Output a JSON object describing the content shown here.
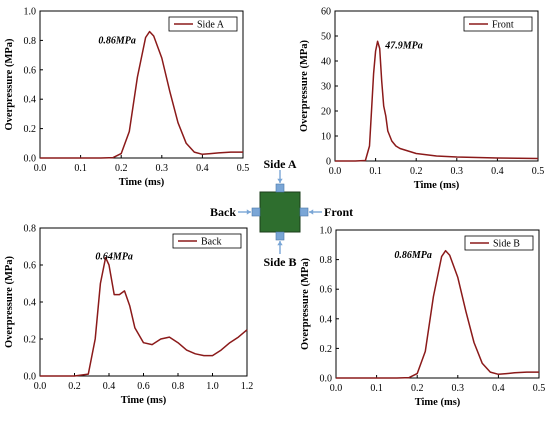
{
  "chart_data": [
    {
      "type": "line",
      "xlabel": "Time (ms)",
      "ylabel": "Overpressure (MPa)",
      "xlim": [
        0,
        0.5
      ],
      "ylim": [
        0,
        1.0
      ],
      "xticks": [
        "0.0",
        "0.1",
        "0.2",
        "0.3",
        "0.4",
        "0.5"
      ],
      "yticks": [
        "0.0",
        "0.2",
        "0.4",
        "0.6",
        "0.8",
        "1.0"
      ],
      "legend": "top-right",
      "annotation": "0.86MPa",
      "series": [
        {
          "name": "Side A",
          "x": [
            0,
            0.05,
            0.1,
            0.15,
            0.18,
            0.2,
            0.22,
            0.24,
            0.26,
            0.27,
            0.28,
            0.3,
            0.32,
            0.34,
            0.36,
            0.38,
            0.4,
            0.42,
            0.44,
            0.47,
            0.5
          ],
          "values": [
            0.0,
            0.0,
            0.0,
            0.0,
            0.003,
            0.03,
            0.18,
            0.55,
            0.82,
            0.86,
            0.83,
            0.68,
            0.45,
            0.24,
            0.1,
            0.04,
            0.025,
            0.03,
            0.035,
            0.04,
            0.04
          ]
        }
      ]
    },
    {
      "type": "line",
      "xlabel": "Time (ms)",
      "ylabel": "Overpressure (MPa)",
      "xlim": [
        0,
        0.5
      ],
      "ylim": [
        0,
        60
      ],
      "xticks": [
        "0.0",
        "0.1",
        "0.2",
        "0.3",
        "0.4",
        "0.5"
      ],
      "yticks": [
        "0",
        "10",
        "20",
        "30",
        "40",
        "50",
        "60"
      ],
      "legend": "top-right",
      "annotation": "47.9MPa",
      "series": [
        {
          "name": "Front",
          "x": [
            0,
            0.05,
            0.075,
            0.085,
            0.09,
            0.095,
            0.1,
            0.105,
            0.11,
            0.115,
            0.12,
            0.125,
            0.13,
            0.14,
            0.15,
            0.16,
            0.18,
            0.2,
            0.25,
            0.3,
            0.4,
            0.5
          ],
          "values": [
            0,
            0,
            0.2,
            6,
            20,
            35,
            44,
            47.9,
            45,
            32,
            22,
            18,
            12,
            8,
            6,
            5,
            4,
            3,
            2,
            1.6,
            1.2,
            1
          ]
        }
      ]
    },
    {
      "type": "line",
      "xlabel": "Time (ms)",
      "ylabel": "Overpressure (MPa)",
      "xlim": [
        0,
        1.2
      ],
      "ylim": [
        0,
        0.8
      ],
      "xticks": [
        "0.0",
        "0.2",
        "0.4",
        "0.6",
        "0.8",
        "1.0",
        "1.2"
      ],
      "yticks": [
        "0.0",
        "0.2",
        "0.4",
        "0.6",
        "0.8"
      ],
      "legend": "top-right",
      "annotation": "0.64MPa",
      "series": [
        {
          "name": "Back",
          "x": [
            0,
            0.2,
            0.28,
            0.32,
            0.35,
            0.38,
            0.4,
            0.43,
            0.46,
            0.49,
            0.52,
            0.55,
            0.6,
            0.65,
            0.7,
            0.75,
            0.8,
            0.85,
            0.9,
            0.95,
            1.0,
            1.05,
            1.1,
            1.15,
            1.2
          ],
          "values": [
            0,
            0,
            0.01,
            0.2,
            0.5,
            0.64,
            0.6,
            0.44,
            0.44,
            0.46,
            0.38,
            0.26,
            0.18,
            0.17,
            0.2,
            0.21,
            0.18,
            0.14,
            0.12,
            0.11,
            0.11,
            0.14,
            0.18,
            0.21,
            0.25
          ]
        }
      ]
    },
    {
      "type": "line",
      "xlabel": "Time (ms)",
      "ylabel": "Overpressure (MPa)",
      "xlim": [
        0,
        0.5
      ],
      "ylim": [
        0,
        1.0
      ],
      "xticks": [
        "0.0",
        "0.1",
        "0.2",
        "0.3",
        "0.4",
        "0.5"
      ],
      "yticks": [
        "0.0",
        "0.2",
        "0.4",
        "0.6",
        "0.8",
        "1.0"
      ],
      "legend": "top-right",
      "annotation": "0.86MPa",
      "series": [
        {
          "name": "Side B",
          "x": [
            0,
            0.05,
            0.1,
            0.15,
            0.18,
            0.2,
            0.22,
            0.24,
            0.26,
            0.27,
            0.28,
            0.3,
            0.32,
            0.34,
            0.36,
            0.38,
            0.4,
            0.42,
            0.44,
            0.47,
            0.5
          ],
          "values": [
            0.0,
            0.0,
            0.0,
            0.0,
            0.003,
            0.03,
            0.18,
            0.55,
            0.82,
            0.86,
            0.83,
            0.68,
            0.45,
            0.24,
            0.1,
            0.04,
            0.025,
            0.03,
            0.035,
            0.04,
            0.04
          ]
        }
      ]
    }
  ],
  "diagram": {
    "labels": {
      "top": "Side  A",
      "left": "Back",
      "right": "Front",
      "bottom": "Side B"
    },
    "colors": {
      "block": "#2e6e2e",
      "sensor": "#7aa6d6",
      "line": "#8b1a1a"
    }
  }
}
